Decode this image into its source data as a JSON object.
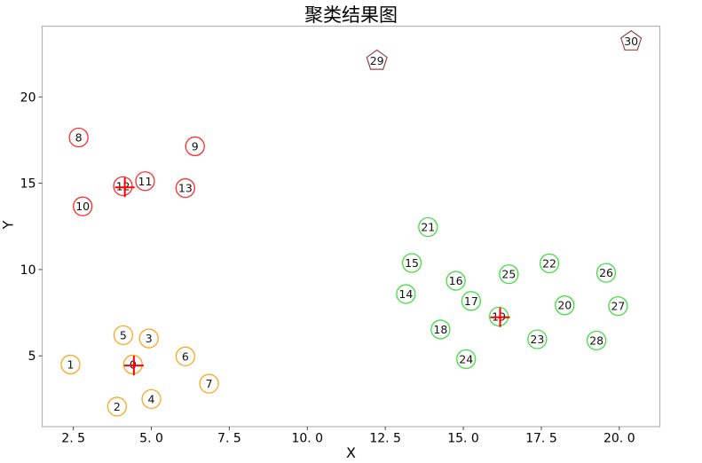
{
  "chart_data": {
    "type": "scatter",
    "title": "聚类结果图",
    "xlabel": "X",
    "ylabel": "Y",
    "grid": false,
    "legend": "none",
    "xlim": [
      1.5,
      21.3
    ],
    "ylim": [
      0.9,
      24.1
    ],
    "xticks": {
      "values": [
        2.5,
        5.0,
        7.5,
        10.0,
        12.5,
        15.0,
        17.5,
        20.0
      ],
      "labels": [
        "2. 5",
        "5. 0",
        "7. 5",
        "10. 0",
        "12. 5",
        "15. 0",
        "17. 5",
        "20. 0"
      ]
    },
    "yticks": {
      "values": [
        5,
        10,
        15,
        20
      ],
      "labels": [
        "5",
        "10",
        "15",
        "20"
      ]
    },
    "series": [
      {
        "name": "cluster-orange",
        "marker": "circle",
        "color": "#ffa620",
        "points": [
          {
            "id": 0,
            "x": 4.41,
            "y": 4.5
          },
          {
            "id": 1,
            "x": 2.41,
            "y": 4.5
          },
          {
            "id": 2,
            "x": 3.9,
            "y": 2.06
          },
          {
            "id": 3,
            "x": 4.92,
            "y": 6.01
          },
          {
            "id": 4,
            "x": 5.0,
            "y": 2.5
          },
          {
            "id": 5,
            "x": 4.1,
            "y": 6.2
          },
          {
            "id": 6,
            "x": 6.09,
            "y": 4.97
          },
          {
            "id": 7,
            "x": 6.85,
            "y": 3.39
          }
        ]
      },
      {
        "name": "cluster-red",
        "marker": "circle",
        "color": "#ff2b2b",
        "points": [
          {
            "id": 8,
            "x": 2.67,
            "y": 17.65
          },
          {
            "id": 9,
            "x": 6.4,
            "y": 17.14
          },
          {
            "id": 10,
            "x": 2.8,
            "y": 13.66
          },
          {
            "id": 11,
            "x": 4.8,
            "y": 15.12
          },
          {
            "id": 12,
            "x": 4.09,
            "y": 14.83
          },
          {
            "id": 13,
            "x": 6.09,
            "y": 14.72
          }
        ]
      },
      {
        "name": "cluster-green",
        "marker": "circle",
        "color": "#3fdf3f",
        "points": [
          {
            "id": 14,
            "x": 13.16,
            "y": 8.58
          },
          {
            "id": 15,
            "x": 13.35,
            "y": 10.38
          },
          {
            "id": 16,
            "x": 14.76,
            "y": 9.35
          },
          {
            "id": 17,
            "x": 15.25,
            "y": 8.18
          },
          {
            "id": 18,
            "x": 14.27,
            "y": 6.53
          },
          {
            "id": 19,
            "x": 16.14,
            "y": 7.28
          },
          {
            "id": 20,
            "x": 18.25,
            "y": 7.93
          },
          {
            "id": 21,
            "x": 13.87,
            "y": 12.46
          },
          {
            "id": 22,
            "x": 17.76,
            "y": 10.36
          },
          {
            "id": 23,
            "x": 17.37,
            "y": 5.96
          },
          {
            "id": 24,
            "x": 15.09,
            "y": 4.81
          },
          {
            "id": 25,
            "x": 16.46,
            "y": 9.73
          },
          {
            "id": 26,
            "x": 19.58,
            "y": 9.81
          },
          {
            "id": 27,
            "x": 19.96,
            "y": 7.88
          },
          {
            "id": 28,
            "x": 19.27,
            "y": 5.89
          }
        ]
      },
      {
        "name": "outliers-pentagon",
        "marker": "pentagon",
        "color": "#994444",
        "points": [
          {
            "id": 29,
            "x": 12.23,
            "y": 22.1
          },
          {
            "id": 30,
            "x": 20.38,
            "y": 23.22
          }
        ]
      }
    ],
    "centers": {
      "marker": "plus",
      "color": "#ff0000",
      "points": [
        {
          "x": 4.44,
          "y": 4.44
        },
        {
          "x": 4.15,
          "y": 14.76
        },
        {
          "x": 16.18,
          "y": 7.23
        }
      ]
    }
  }
}
